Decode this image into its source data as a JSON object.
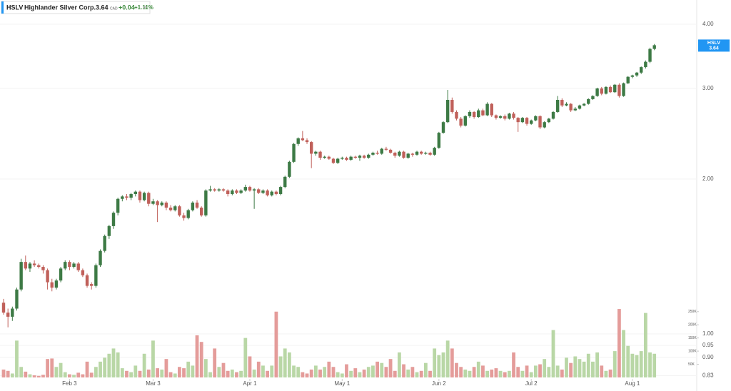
{
  "chart_data": {
    "type": "candlestick",
    "symbol": "HSLV",
    "name": "Highlander Silver Corp.",
    "last": 3.64,
    "currency": "CAD",
    "change": {
      "value": 0.04,
      "label": "+0.04"
    },
    "change_pct": {
      "value": 1.11,
      "label": "+1.11%"
    },
    "log_scale": true,
    "grid": true,
    "up_color": "#3d7a45",
    "down_color": "#c0605a",
    "up_volume_color": "#b9d7a6",
    "down_volume_color": "#e49c9a",
    "ylim": [
      0.81,
      4.4
    ],
    "yticks": [
      {
        "value": 4,
        "label": "4.00"
      },
      {
        "value": 3,
        "label": "3.00"
      },
      {
        "value": 2,
        "label": "2.00"
      },
      {
        "value": 1,
        "label": "1.00"
      },
      0.95,
      {
        "value": 0.9,
        "label": "0.90"
      },
      0.83
    ],
    "y2lim": [
      0,
      290000
    ],
    "y2ticks": [
      {
        "value": 250000,
        "label": "250K"
      },
      {
        "value": 200000,
        "label": "200K"
      },
      {
        "value": 150000,
        "label": "150K"
      },
      {
        "value": 100000,
        "label": "100K"
      },
      {
        "value": 50000,
        "label": "50K"
      }
    ],
    "categories": [
      null,
      null,
      null,
      null,
      null,
      null,
      null,
      null,
      null,
      null,
      null,
      null,
      null,
      null,
      null,
      "Feb 3",
      null,
      null,
      null,
      null,
      null,
      null,
      null,
      null,
      null,
      null,
      null,
      null,
      null,
      null,
      null,
      null,
      null,
      null,
      "Mar 3",
      null,
      null,
      null,
      null,
      null,
      null,
      null,
      null,
      null,
      null,
      null,
      null,
      null,
      null,
      null,
      null,
      null,
      null,
      null,
      null,
      null,
      "Apr 1",
      null,
      null,
      null,
      null,
      null,
      null,
      null,
      null,
      null,
      null,
      null,
      null,
      null,
      null,
      null,
      null,
      null,
      null,
      null,
      null,
      "May 1",
      null,
      null,
      null,
      null,
      null,
      null,
      null,
      null,
      null,
      null,
      null,
      null,
      null,
      null,
      null,
      null,
      null,
      null,
      null,
      null,
      null,
      "Jun 2",
      null,
      null,
      null,
      null,
      null,
      null,
      null,
      null,
      null,
      null,
      null,
      null,
      null,
      null,
      null,
      null,
      null,
      null,
      null,
      null,
      "Jul 2",
      null,
      null,
      null,
      null,
      null,
      null,
      null,
      null,
      null,
      null,
      null,
      null,
      null,
      null,
      null,
      null,
      null,
      null,
      null,
      null,
      null,
      null,
      "Aug 1",
      null,
      null,
      null,
      null,
      null
    ],
    "candles": [
      [
        1.15,
        1.17,
        1.09,
        1.1,
        30000
      ],
      [
        1.1,
        1.12,
        1.03,
        1.08,
        25000
      ],
      [
        1.08,
        1.13,
        1.06,
        1.12,
        15000
      ],
      [
        1.12,
        1.23,
        1.11,
        1.22,
        140000
      ],
      [
        1.22,
        1.4,
        1.21,
        1.38,
        40000
      ],
      [
        1.38,
        1.42,
        1.33,
        1.34,
        22000
      ],
      [
        1.34,
        1.38,
        1.32,
        1.37,
        12000
      ],
      [
        1.37,
        1.39,
        1.35,
        1.36,
        8000
      ],
      [
        1.36,
        1.37,
        1.34,
        1.35,
        6000
      ],
      [
        1.35,
        1.36,
        1.31,
        1.33,
        10000
      ],
      [
        1.33,
        1.34,
        1.22,
        1.26,
        70000
      ],
      [
        1.26,
        1.28,
        1.21,
        1.23,
        72000
      ],
      [
        1.23,
        1.28,
        1.22,
        1.27,
        40000
      ],
      [
        1.27,
        1.35,
        1.26,
        1.34,
        55000
      ],
      [
        1.34,
        1.39,
        1.33,
        1.38,
        20000
      ],
      [
        1.38,
        1.39,
        1.33,
        1.35,
        12000
      ],
      [
        1.35,
        1.38,
        1.34,
        1.37,
        10000
      ],
      [
        1.37,
        1.38,
        1.32,
        1.33,
        18000
      ],
      [
        1.33,
        1.34,
        1.29,
        1.3,
        12000
      ],
      [
        1.3,
        1.31,
        1.23,
        1.24,
        60000
      ],
      [
        1.25,
        1.26,
        1.22,
        1.24,
        18000
      ],
      [
        1.24,
        1.37,
        1.23,
        1.36,
        40000
      ],
      [
        1.36,
        1.46,
        1.35,
        1.45,
        60000
      ],
      [
        1.45,
        1.56,
        1.44,
        1.55,
        75000
      ],
      [
        1.55,
        1.63,
        1.53,
        1.62,
        90000
      ],
      [
        1.62,
        1.73,
        1.6,
        1.72,
        110000
      ],
      [
        1.72,
        1.84,
        1.7,
        1.83,
        95000
      ],
      [
        1.83,
        1.86,
        1.81,
        1.85,
        35000
      ],
      [
        1.85,
        1.87,
        1.82,
        1.84,
        25000
      ],
      [
        1.84,
        1.88,
        1.82,
        1.87,
        20000
      ],
      [
        1.87,
        1.9,
        1.85,
        1.89,
        45000
      ],
      [
        1.89,
        1.9,
        1.8,
        1.82,
        25000
      ],
      [
        1.82,
        1.89,
        1.81,
        1.88,
        90000
      ],
      [
        1.88,
        1.89,
        1.77,
        1.79,
        30000
      ],
      [
        1.79,
        1.83,
        1.78,
        1.81,
        140000
      ],
      [
        1.81,
        1.82,
        1.65,
        1.78,
        35000
      ],
      [
        1.78,
        1.81,
        1.77,
        1.8,
        30000
      ],
      [
        1.8,
        1.81,
        1.74,
        1.76,
        70000
      ],
      [
        1.76,
        1.78,
        1.73,
        1.74,
        20000
      ],
      [
        1.74,
        1.78,
        1.73,
        1.77,
        15000
      ],
      [
        1.77,
        1.78,
        1.69,
        1.7,
        40000
      ],
      [
        1.7,
        1.72,
        1.66,
        1.68,
        35000
      ],
      [
        1.68,
        1.75,
        1.67,
        1.74,
        60000
      ],
      [
        1.74,
        1.81,
        1.73,
        1.8,
        45000
      ],
      [
        1.8,
        1.82,
        1.75,
        1.76,
        160000
      ],
      [
        1.76,
        1.77,
        1.69,
        1.7,
        135000
      ],
      [
        1.7,
        1.91,
        1.69,
        1.9,
        70000
      ],
      [
        1.9,
        1.94,
        1.89,
        1.91,
        20000
      ],
      [
        1.91,
        1.92,
        1.89,
        1.9,
        110000
      ],
      [
        1.9,
        1.92,
        1.89,
        1.91,
        40000
      ],
      [
        1.91,
        1.92,
        1.89,
        1.9,
        55000
      ],
      [
        1.9,
        1.91,
        1.85,
        1.87,
        25000
      ],
      [
        1.87,
        1.91,
        1.86,
        1.9,
        30000
      ],
      [
        1.9,
        1.91,
        1.87,
        1.88,
        20000
      ],
      [
        1.88,
        1.91,
        1.87,
        1.9,
        25000
      ],
      [
        1.9,
        1.95,
        1.89,
        1.93,
        150000
      ],
      [
        1.93,
        1.94,
        1.89,
        1.9,
        80000
      ],
      [
        1.9,
        1.92,
        1.75,
        1.91,
        30000
      ],
      [
        1.91,
        1.92,
        1.87,
        1.88,
        60000
      ],
      [
        1.88,
        1.91,
        1.87,
        1.9,
        45000
      ],
      [
        1.9,
        1.91,
        1.85,
        1.86,
        25000
      ],
      [
        1.86,
        1.9,
        1.85,
        1.89,
        45000
      ],
      [
        1.89,
        1.9,
        1.86,
        1.87,
        250000
      ],
      [
        1.87,
        1.94,
        1.86,
        1.93,
        80000
      ],
      [
        1.93,
        2.03,
        1.92,
        2.02,
        110000
      ],
      [
        2.02,
        2.17,
        2.01,
        2.16,
        95000
      ],
      [
        2.16,
        2.35,
        2.15,
        2.34,
        45000
      ],
      [
        2.34,
        2.41,
        2.32,
        2.4,
        40000
      ],
      [
        2.4,
        2.48,
        2.37,
        2.38,
        20000
      ],
      [
        2.38,
        2.4,
        2.34,
        2.36,
        15000
      ],
      [
        2.36,
        2.37,
        2.1,
        2.24,
        30000
      ],
      [
        2.24,
        2.27,
        2.22,
        2.26,
        45000
      ],
      [
        2.26,
        2.27,
        2.18,
        2.2,
        30000
      ],
      [
        2.2,
        2.22,
        2.19,
        2.21,
        40000
      ],
      [
        2.21,
        2.22,
        2.18,
        2.19,
        60000
      ],
      [
        2.19,
        2.2,
        2.14,
        2.15,
        40000
      ],
      [
        2.15,
        2.2,
        2.14,
        2.19,
        20000
      ],
      [
        2.19,
        2.21,
        2.18,
        2.2,
        15000
      ],
      [
        2.2,
        2.21,
        2.17,
        2.18,
        50000
      ],
      [
        2.18,
        2.22,
        2.17,
        2.21,
        25000
      ],
      [
        2.21,
        2.22,
        2.19,
        2.2,
        35000
      ],
      [
        2.2,
        2.23,
        2.17,
        2.22,
        20000
      ],
      [
        2.22,
        2.23,
        2.19,
        2.2,
        30000
      ],
      [
        2.2,
        2.24,
        2.19,
        2.23,
        40000
      ],
      [
        2.23,
        2.26,
        2.22,
        2.25,
        45000
      ],
      [
        2.25,
        2.27,
        2.23,
        2.24,
        60000
      ],
      [
        2.24,
        2.3,
        2.23,
        2.29,
        55000
      ],
      [
        2.29,
        2.31,
        2.27,
        2.28,
        40000
      ],
      [
        2.28,
        2.29,
        2.24,
        2.25,
        70000
      ],
      [
        2.25,
        2.26,
        2.2,
        2.22,
        25000
      ],
      [
        2.22,
        2.27,
        2.21,
        2.26,
        95000
      ],
      [
        2.26,
        2.27,
        2.19,
        2.2,
        50000
      ],
      [
        2.2,
        2.25,
        2.19,
        2.24,
        30000
      ],
      [
        2.24,
        2.25,
        2.21,
        2.23,
        40000
      ],
      [
        2.23,
        2.27,
        2.22,
        2.26,
        20000
      ],
      [
        2.26,
        2.27,
        2.23,
        2.24,
        25000
      ],
      [
        2.24,
        2.26,
        2.23,
        2.25,
        55000
      ],
      [
        2.25,
        2.26,
        2.22,
        2.23,
        25000
      ],
      [
        2.23,
        2.31,
        2.22,
        2.3,
        110000
      ],
      [
        2.3,
        2.47,
        2.29,
        2.46,
        85000
      ],
      [
        2.46,
        2.59,
        2.45,
        2.58,
        95000
      ],
      [
        2.58,
        2.98,
        2.57,
        2.85,
        140000
      ],
      [
        2.85,
        2.88,
        2.68,
        2.7,
        110000
      ],
      [
        2.7,
        2.72,
        2.6,
        2.62,
        55000
      ],
      [
        2.62,
        2.64,
        2.52,
        2.54,
        40000
      ],
      [
        2.54,
        2.66,
        2.53,
        2.65,
        30000
      ],
      [
        2.65,
        2.72,
        2.63,
        2.7,
        25000
      ],
      [
        2.7,
        2.71,
        2.62,
        2.64,
        40000
      ],
      [
        2.64,
        2.74,
        2.63,
        2.72,
        60000
      ],
      [
        2.72,
        2.74,
        2.65,
        2.66,
        45000
      ],
      [
        2.66,
        2.82,
        2.65,
        2.8,
        25000
      ],
      [
        2.8,
        2.81,
        2.64,
        2.66,
        30000
      ],
      [
        2.66,
        2.67,
        2.61,
        2.63,
        35000
      ],
      [
        2.63,
        2.66,
        2.62,
        2.65,
        25000
      ],
      [
        2.65,
        2.67,
        2.6,
        2.62,
        20000
      ],
      [
        2.62,
        2.69,
        2.61,
        2.68,
        25000
      ],
      [
        2.68,
        2.7,
        2.61,
        2.63,
        95000
      ],
      [
        2.63,
        2.64,
        2.47,
        2.58,
        40000
      ],
      [
        2.58,
        2.64,
        2.57,
        2.63,
        25000
      ],
      [
        2.63,
        2.64,
        2.54,
        2.56,
        45000
      ],
      [
        2.56,
        2.61,
        2.55,
        2.6,
        20000
      ],
      [
        2.6,
        2.66,
        2.59,
        2.65,
        45000
      ],
      [
        2.65,
        2.66,
        2.5,
        2.52,
        50000
      ],
      [
        2.52,
        2.59,
        2.51,
        2.58,
        70000
      ],
      [
        2.58,
        2.63,
        2.57,
        2.62,
        40000
      ],
      [
        2.62,
        2.71,
        2.61,
        2.7,
        180000
      ],
      [
        2.7,
        2.9,
        2.69,
        2.85,
        45000
      ],
      [
        2.85,
        2.87,
        2.76,
        2.78,
        30000
      ],
      [
        2.78,
        2.82,
        2.77,
        2.8,
        75000
      ],
      [
        2.8,
        2.81,
        2.7,
        2.72,
        55000
      ],
      [
        2.72,
        2.76,
        2.71,
        2.74,
        80000
      ],
      [
        2.74,
        2.79,
        2.73,
        2.78,
        70000
      ],
      [
        2.78,
        2.81,
        2.77,
        2.8,
        60000
      ],
      [
        2.8,
        2.87,
        2.79,
        2.86,
        90000
      ],
      [
        2.86,
        2.91,
        2.85,
        2.9,
        60000
      ],
      [
        2.9,
        3.01,
        2.89,
        3.0,
        95000
      ],
      [
        3.0,
        3.02,
        2.91,
        2.93,
        45000
      ],
      [
        2.93,
        3.03,
        2.92,
        3.02,
        25000
      ],
      [
        3.02,
        3.04,
        2.94,
        2.95,
        30000
      ],
      [
        2.95,
        3.06,
        2.94,
        3.05,
        100000
      ],
      [
        3.05,
        3.07,
        2.88,
        2.9,
        260000
      ],
      [
        2.9,
        3.08,
        2.89,
        3.07,
        180000
      ],
      [
        3.07,
        3.17,
        3.06,
        3.16,
        120000
      ],
      [
        3.16,
        3.19,
        3.14,
        3.18,
        90000
      ],
      [
        3.18,
        3.23,
        3.16,
        3.22,
        85000
      ],
      [
        3.22,
        3.31,
        3.2,
        3.3,
        100000
      ],
      [
        3.3,
        3.4,
        3.28,
        3.38,
        245000
      ],
      [
        3.38,
        3.6,
        3.36,
        3.58,
        95000
      ],
      [
        3.58,
        3.66,
        3.56,
        3.64,
        90000
      ]
    ]
  }
}
